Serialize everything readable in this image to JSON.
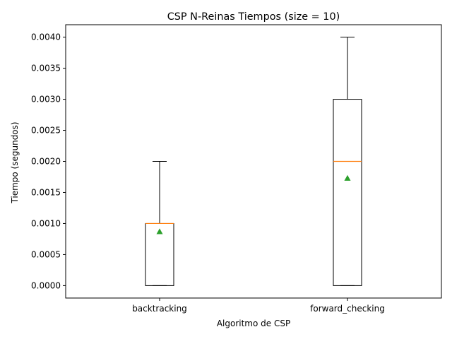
{
  "chart_data": {
    "type": "box",
    "title": "CSP N-Reinas Tiempos (size = 10)",
    "xlabel": "Algoritmo de CSP",
    "ylabel": "Tiempo (segundos)",
    "ylim": [
      -0.0002,
      0.0042
    ],
    "yticks": [
      0,
      0.0005,
      0.001,
      0.0015,
      0.002,
      0.0025,
      0.003,
      0.0035,
      0.004
    ],
    "ytick_labels": [
      "0.0000",
      "0.0005",
      "0.0010",
      "0.0015",
      "0.0020",
      "0.0025",
      "0.0030",
      "0.0035",
      "0.0040"
    ],
    "categories": [
      "backtracking",
      "forward_checking"
    ],
    "boxes": [
      {
        "min": 0,
        "q1": 0,
        "median": 0.001,
        "q3": 0.001,
        "max": 0.002,
        "mean": 0.00087
      },
      {
        "min": 0,
        "q1": 0,
        "median": 0.002,
        "q3": 0.003,
        "max": 0.004,
        "mean": 0.00173
      }
    ],
    "grid": false,
    "colors": {
      "box": "#000000",
      "median": "#ff7f0e",
      "mean": "#2ca02c"
    }
  }
}
